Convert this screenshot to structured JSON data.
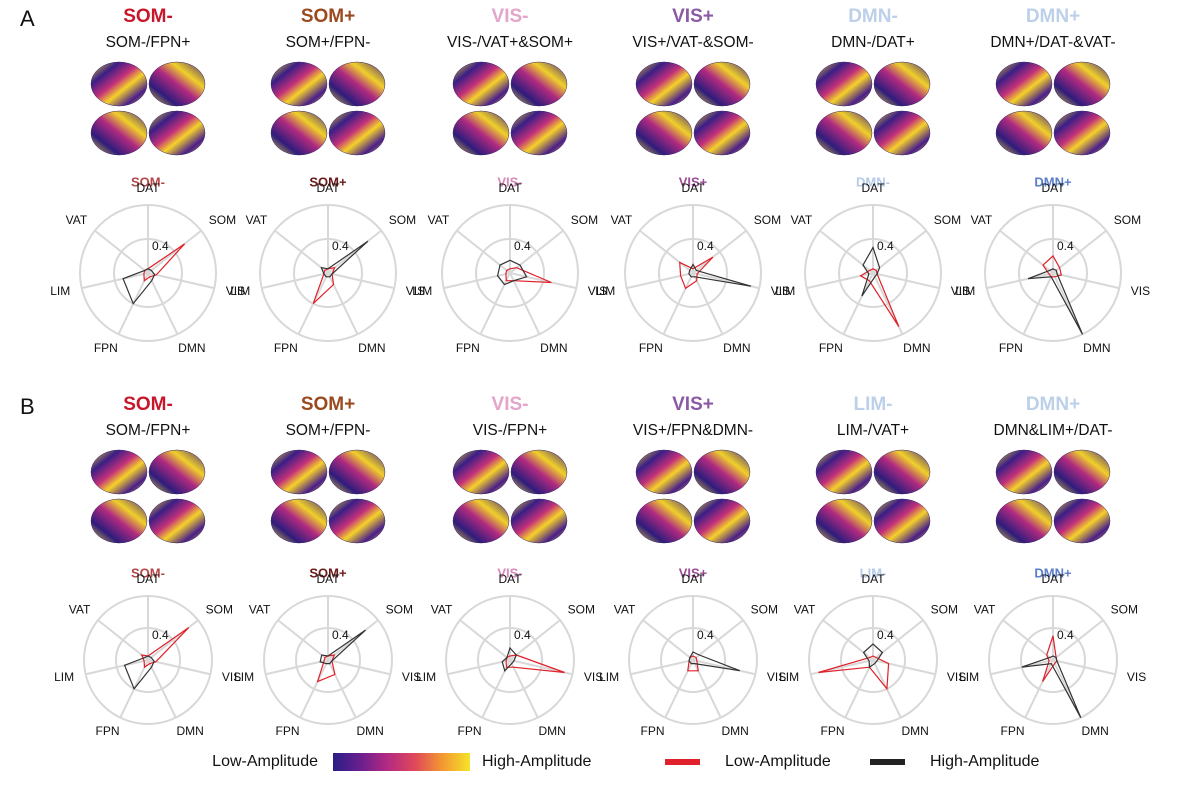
{
  "panels": [
    {
      "label": "A",
      "maps": [
        {
          "title": "SOM-",
          "title_color": "#c8162a",
          "subtitle": "SOM-/FPN+"
        },
        {
          "title": "SOM+",
          "title_color": "#9b4a1e",
          "subtitle": "SOM+/FPN-"
        },
        {
          "title": "VIS-",
          "title_color": "#e3a5c9",
          "subtitle": "VIS-/VAT+&SOM+"
        },
        {
          "title": "VIS+",
          "title_color": "#8b5aa4",
          "subtitle": "VIS+/VAT-&SOM-"
        },
        {
          "title": "DMN-",
          "title_color": "#bcd0ea",
          "subtitle": "DMN-/DAT+"
        },
        {
          "title": "DMN+",
          "title_color": "#bcd0ea",
          "subtitle": "DMN+/DAT-&VAT-"
        }
      ]
    },
    {
      "label": "B",
      "maps": [
        {
          "title": "SOM-",
          "title_color": "#c8162a",
          "subtitle": "SOM-/FPN+"
        },
        {
          "title": "SOM+",
          "title_color": "#9b4a1e",
          "subtitle": "SOM+/FPN-"
        },
        {
          "title": "VIS-",
          "title_color": "#e3a5c9",
          "subtitle": "VIS-/FPN+"
        },
        {
          "title": "VIS+",
          "title_color": "#8b5aa4",
          "subtitle": "VIS+/FPN&DMN-"
        },
        {
          "title": "LIM-",
          "title_color": "#bcd0ea",
          "subtitle": "LIM-/VAT+"
        },
        {
          "title": "DMN+",
          "title_color": "#bcd0ea",
          "subtitle": "DMN&LIM+/DAT-"
        }
      ]
    }
  ],
  "chart_data": [
    {
      "type": "radar",
      "title": "SOM-",
      "title_color": "#b34848",
      "categories": [
        "SOM",
        "VIS",
        "DMN",
        "FPN",
        "LIM",
        "VAT",
        "DAT"
      ],
      "rlim": [
        0,
        0.8
      ],
      "rticks": [
        0.4
      ],
      "series": [
        {
          "color": "#e0202a",
          "values": [
            0.55,
            0.1,
            0.05,
            0.1,
            0.05,
            0.05,
            0.05
          ]
        },
        {
          "color": "#333333",
          "values": [
            0.05,
            0.08,
            0.1,
            0.4,
            0.3,
            0.05,
            0.05
          ]
        }
      ]
    },
    {
      "type": "radar",
      "title": "SOM+",
      "title_color": "#6b1a1a",
      "categories": [
        "SOM",
        "VIS",
        "DMN",
        "FPN",
        "LIM",
        "VAT",
        "DAT"
      ],
      "rlim": [
        0,
        0.8
      ],
      "rticks": [
        0.4
      ],
      "series": [
        {
          "color": "#e0202a",
          "values": [
            0.1,
            0.05,
            0.15,
            0.4,
            0.05,
            0.05,
            0.05
          ]
        },
        {
          "color": "#333333",
          "values": [
            0.6,
            0.05,
            0.05,
            0.05,
            0.05,
            0.1,
            0.05
          ]
        }
      ]
    },
    {
      "type": "radar",
      "title": "VIS-",
      "title_color": "#d68ab8",
      "categories": [
        "SOM",
        "VIS",
        "DMN",
        "FPN",
        "LIM",
        "VAT",
        "DAT"
      ],
      "rlim": [
        0,
        0.8
      ],
      "rticks": [
        0.4
      ],
      "series": [
        {
          "color": "#e0202a",
          "values": [
            0.1,
            0.5,
            0.1,
            0.1,
            0.05,
            0.05,
            0.05
          ]
        },
        {
          "color": "#333333",
          "values": [
            0.15,
            0.2,
            0.1,
            0.15,
            0.15,
            0.15,
            0.15
          ]
        }
      ]
    },
    {
      "type": "radar",
      "title": "VIS+",
      "title_color": "#9a4f94",
      "categories": [
        "SOM",
        "VIS",
        "DMN",
        "FPN",
        "LIM",
        "VAT",
        "DAT"
      ],
      "rlim": [
        0,
        0.8
      ],
      "rticks": [
        0.4
      ],
      "series": [
        {
          "color": "#e0202a",
          "values": [
            0.3,
            0.05,
            0.1,
            0.2,
            0.15,
            0.2,
            0.05
          ]
        },
        {
          "color": "#333333",
          "values": [
            0.05,
            0.7,
            0.05,
            0.05,
            0.05,
            0.05,
            0.1
          ]
        }
      ]
    },
    {
      "type": "radar",
      "title": "DMN-",
      "title_color": "#b5cbe8",
      "categories": [
        "SOM",
        "VIS",
        "DMN",
        "FPN",
        "LIM",
        "VAT",
        "DAT"
      ],
      "rlim": [
        0,
        0.8
      ],
      "rticks": [
        0.4
      ],
      "series": [
        {
          "color": "#e0202a",
          "values": [
            0.05,
            0.05,
            0.7,
            0.1,
            0.15,
            0.05,
            0.05
          ]
        },
        {
          "color": "#333333",
          "values": [
            0.1,
            0.05,
            0.05,
            0.3,
            0.05,
            0.15,
            0.3
          ]
        }
      ]
    },
    {
      "type": "radar",
      "title": "DMN+",
      "title_color": "#5b7fc8",
      "categories": [
        "SOM",
        "VIS",
        "DMN",
        "FPN",
        "LIM",
        "VAT",
        "DAT"
      ],
      "rlim": [
        0,
        0.8
      ],
      "rticks": [
        0.4
      ],
      "series": [
        {
          "color": "#e0202a",
          "values": [
            0.1,
            0.1,
            0.05,
            0.05,
            0.05,
            0.15,
            0.2
          ]
        },
        {
          "color": "#333333",
          "values": [
            0.05,
            0.05,
            0.8,
            0.05,
            0.3,
            0.05,
            0.05
          ]
        }
      ]
    },
    {
      "type": "radar",
      "title": "SOM-",
      "title_color": "#b34848",
      "categories": [
        "SOM",
        "VIS",
        "DMN",
        "FPN",
        "LIM",
        "VAT",
        "DAT"
      ],
      "rlim": [
        0,
        0.8
      ],
      "rticks": [
        0.4
      ],
      "series": [
        {
          "color": "#e0202a",
          "values": [
            0.65,
            0.1,
            0.05,
            0.1,
            0.05,
            0.1,
            0.05
          ]
        },
        {
          "color": "#333333",
          "values": [
            0.05,
            0.08,
            0.1,
            0.4,
            0.3,
            0.05,
            0.05
          ]
        }
      ]
    },
    {
      "type": "radar",
      "title": "SOM+",
      "title_color": "#6b1a1a",
      "categories": [
        "SOM",
        "VIS",
        "DMN",
        "FPN",
        "LIM",
        "VAT",
        "DAT"
      ],
      "rlim": [
        0,
        0.8
      ],
      "rticks": [
        0.4
      ],
      "series": [
        {
          "color": "#e0202a",
          "values": [
            0.1,
            0.05,
            0.2,
            0.3,
            0.05,
            0.05,
            0.05
          ]
        },
        {
          "color": "#333333",
          "values": [
            0.6,
            0.05,
            0.05,
            0.05,
            0.1,
            0.1,
            0.05
          ]
        }
      ]
    },
    {
      "type": "radar",
      "title": "VIS-",
      "title_color": "#d68ab8",
      "categories": [
        "SOM",
        "VIS",
        "DMN",
        "FPN",
        "LIM",
        "VAT",
        "DAT"
      ],
      "rlim": [
        0,
        0.8
      ],
      "rticks": [
        0.4
      ],
      "series": [
        {
          "color": "#e0202a",
          "values": [
            0.1,
            0.7,
            0.1,
            0.1,
            0.05,
            0.05,
            0.05
          ]
        },
        {
          "color": "#333333",
          "values": [
            0.1,
            0.05,
            0.05,
            0.15,
            0.1,
            0.05,
            0.15
          ]
        }
      ]
    },
    {
      "type": "radar",
      "title": "VIS+",
      "title_color": "#9a4f94",
      "categories": [
        "SOM",
        "VIS",
        "DMN",
        "FPN",
        "LIM",
        "VAT",
        "DAT"
      ],
      "rlim": [
        0,
        0.8
      ],
      "rticks": [
        0.4
      ],
      "series": [
        {
          "color": "#e0202a",
          "values": [
            0.05,
            0.05,
            0.15,
            0.15,
            0.05,
            0.05,
            0.05
          ]
        },
        {
          "color": "#333333",
          "values": [
            0.1,
            0.6,
            0.05,
            0.05,
            0.05,
            0.05,
            0.1
          ]
        }
      ]
    },
    {
      "type": "radar",
      "title": "LIM-",
      "title_color": "#b5cbe8",
      "categories": [
        "SOM",
        "VIS",
        "DMN",
        "FPN",
        "LIM",
        "VAT",
        "DAT"
      ],
      "rlim": [
        0,
        0.8
      ],
      "rticks": [
        0.4
      ],
      "series": [
        {
          "color": "#e0202a",
          "values": [
            0.05,
            0.2,
            0.4,
            0.1,
            0.7,
            0.05,
            0.05
          ]
        },
        {
          "color": "#333333",
          "values": [
            0.15,
            0.05,
            0.05,
            0.1,
            0.05,
            0.15,
            0.2
          ]
        }
      ]
    },
    {
      "type": "radar",
      "title": "DMN+",
      "title_color": "#5b7fc8",
      "categories": [
        "SOM",
        "VIS",
        "DMN",
        "FPN",
        "LIM",
        "VAT",
        "DAT"
      ],
      "rlim": [
        0,
        0.8
      ],
      "rticks": [
        0.4
      ],
      "series": [
        {
          "color": "#e0202a",
          "values": [
            0.05,
            0.05,
            0.05,
            0.3,
            0.05,
            0.1,
            0.3
          ]
        },
        {
          "color": "#333333",
          "values": [
            0.05,
            0.05,
            0.8,
            0.05,
            0.4,
            0.05,
            0.05
          ]
        }
      ]
    }
  ],
  "legend": {
    "colorbar": {
      "low_label": "Low-Amplitude",
      "high_label": "High-Amplitude",
      "colors": [
        "#2a1e86",
        "#6a1f8e",
        "#b42a82",
        "#e0485a",
        "#f29a30",
        "#f6e22a"
      ]
    },
    "lines": [
      {
        "name": "Low-Amplitude",
        "color": "#e0202a"
      },
      {
        "name": "High-Amplitude",
        "color": "#222222"
      }
    ]
  }
}
